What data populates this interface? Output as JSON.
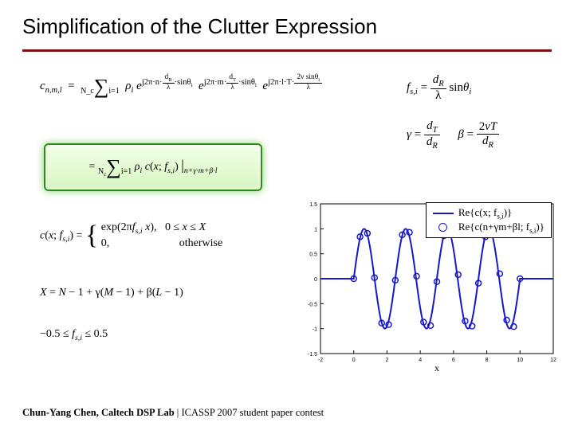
{
  "title": "Simplification of the Clutter Expression",
  "equations": {
    "main_lhs": "c",
    "main_sub": "n,m,l",
    "main_eq": " = ",
    "sum_top": "N_c",
    "sum_bot": "i=1",
    "rho": "ρ",
    "exp1_top": "j2π·n·(d_R/λ)·sinθ_i",
    "exp2_top": "j2π·m·(d_T/λ)·sinθ_i",
    "exp3_top": "j2π·l·T·(2ν sinθ_i / λ)",
    "fs_eq_lhs": "f",
    "fs_eq_sub": "s,i",
    "fs_eq_rhs_num": "d_R",
    "fs_eq_rhs_den": "λ",
    "fs_eq_tail": " sinθ_i",
    "gamma_def": "γ = d_T / d_R",
    "beta_def": "β = 2νT / d_R",
    "box_line": "= Σ ρ_i c(x; f_{s,i}) |_{n+γ·m+β·l}",
    "cases_lhs": "c(x; f_{s,i}) =",
    "cases_1": "exp(2πf_{s,i} x),   0 ≤ x ≤ X",
    "cases_2": "0,                          otherwise",
    "X_def": "X = N − 1 + γ(M − 1) + β(L − 1)",
    "fs_range": "−0.5 ≤ f_{s,i} ≤ 0.5"
  },
  "legend": {
    "row1": "Re{c(x; f_{s,i})}",
    "row2": "Re{c(n+γm+βl; f_{s,i})}"
  },
  "chart": {
    "type": "line+scatter",
    "xlim": [
      -2,
      12
    ],
    "ylim": [
      -1.5,
      1.5
    ],
    "xtick_step": 2,
    "ytick_step": 0.5,
    "x_label": "x",
    "background": "#ffffff",
    "box_color": "#000000",
    "grid": false,
    "line_color": "#1818c8",
    "line_width": 2,
    "marker_edge_color": "#1818c8",
    "marker_fill": "none",
    "marker_size": 5,
    "tick_fontsize": 7,
    "label_fontsize": 12,
    "zero_segments": [
      [
        -2,
        0
      ],
      [
        0,
        0
      ]
    ],
    "sine_window": [
      0,
      10
    ],
    "tail_segment": [
      [
        10,
        0
      ],
      [
        12,
        0
      ]
    ],
    "sine_freq_cycles": 4,
    "markers": [
      [
        0.0,
        0.0
      ],
      [
        0.38,
        0.84
      ],
      [
        0.82,
        0.91
      ],
      [
        1.25,
        0.02
      ],
      [
        1.68,
        -0.89
      ],
      [
        2.1,
        -0.92
      ],
      [
        2.5,
        -0.03
      ],
      [
        2.92,
        0.88
      ],
      [
        3.35,
        0.93
      ],
      [
        3.78,
        0.05
      ],
      [
        4.2,
        -0.87
      ],
      [
        4.62,
        -0.94
      ],
      [
        5.0,
        -0.06
      ],
      [
        5.42,
        0.86
      ],
      [
        5.85,
        0.95
      ],
      [
        6.28,
        0.08
      ],
      [
        6.7,
        -0.85
      ],
      [
        7.12,
        -0.95
      ],
      [
        7.5,
        -0.09
      ],
      [
        7.92,
        0.84
      ],
      [
        8.35,
        0.96
      ],
      [
        8.78,
        0.1
      ],
      [
        9.2,
        -0.83
      ],
      [
        9.62,
        -0.96
      ],
      [
        10.0,
        0.0
      ]
    ]
  },
  "footer": {
    "author": "Chun-Yang Chen, Caltech DSP Lab",
    "sep": " | ",
    "venue": "ICASSP 2007 student paper contest"
  }
}
